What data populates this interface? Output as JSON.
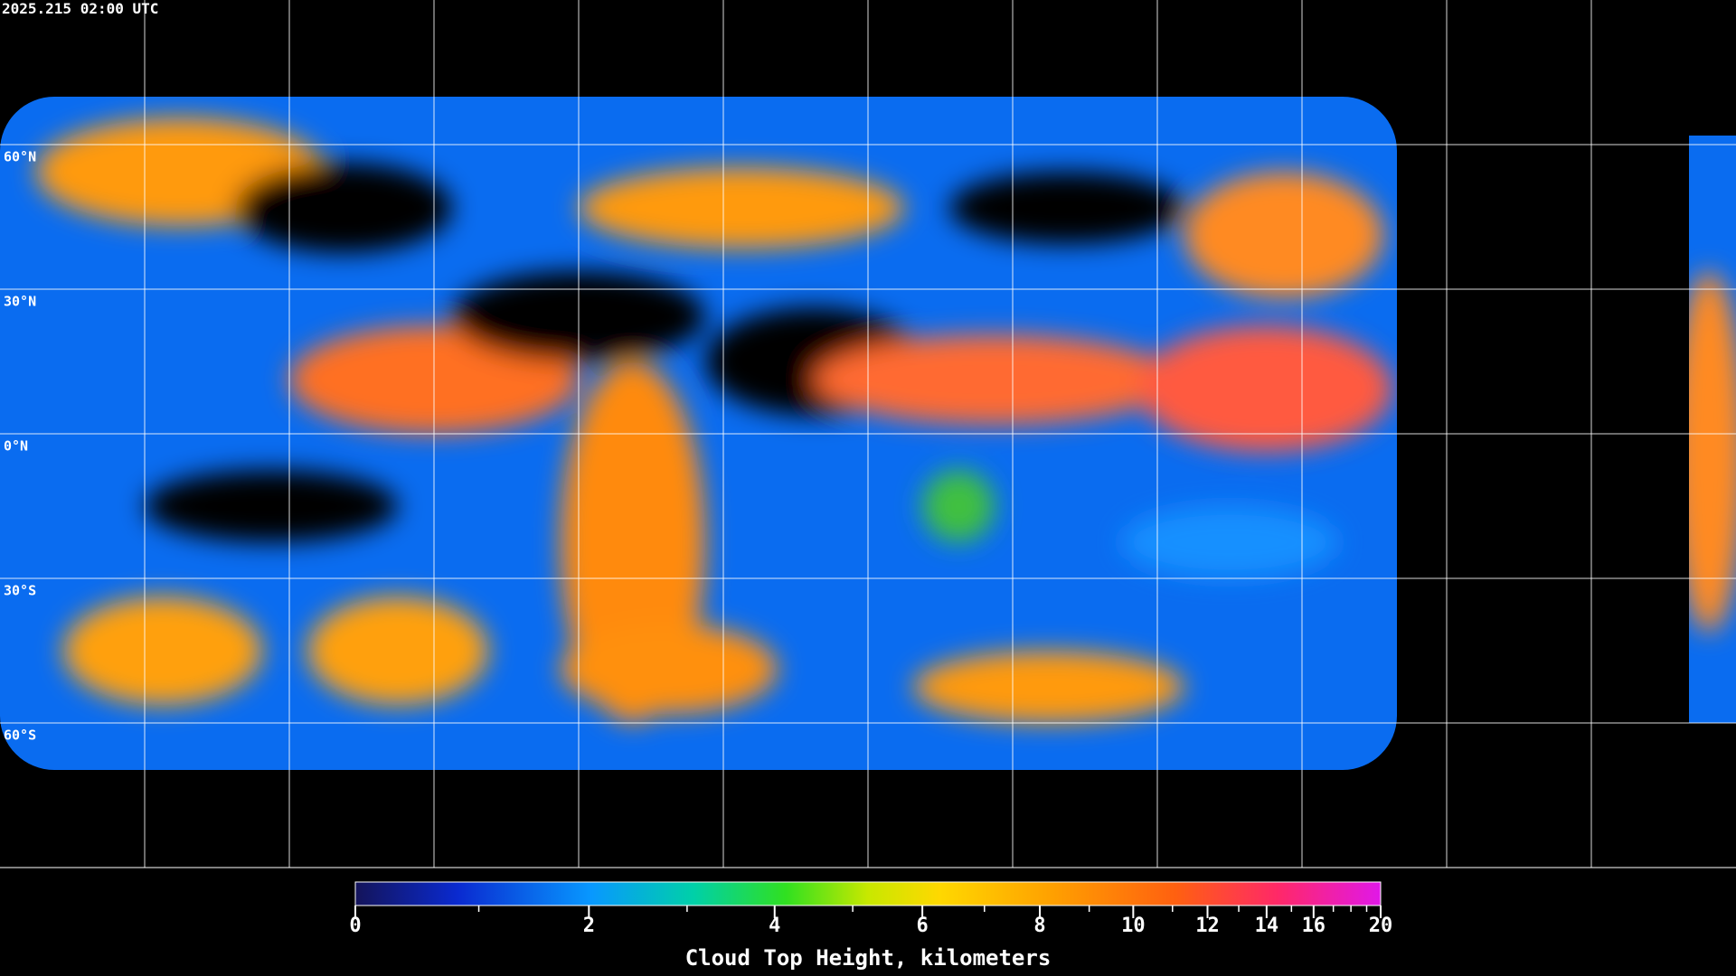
{
  "timestamp": "2025.215 02:00 UTC",
  "map": {
    "xlim": [
      -180,
      180
    ],
    "ylim": [
      -90,
      90
    ],
    "lon_ticks": [
      -150,
      -120,
      -90,
      -60,
      -30,
      0,
      30,
      60,
      90,
      120,
      150
    ],
    "lat_ticks": [
      {
        "value": 60,
        "label": "60°N"
      },
      {
        "value": 30,
        "label": "30°N"
      },
      {
        "value": 0,
        "label": "0°N"
      },
      {
        "value": -30,
        "label": "30°S"
      },
      {
        "value": -60,
        "label": "60°S"
      }
    ]
  },
  "colorbar": {
    "label": "Cloud Top Height, kilometers",
    "range": [
      0,
      20
    ],
    "ticks": [
      0,
      2,
      4,
      6,
      8,
      10,
      12,
      14,
      16,
      20
    ],
    "minor_ticks": [
      1,
      3,
      5,
      7,
      9,
      11,
      13,
      15,
      17,
      18,
      19
    ]
  }
}
